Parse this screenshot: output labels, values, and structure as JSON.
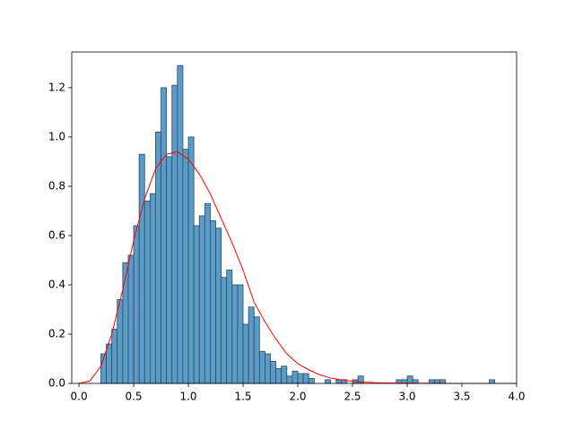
{
  "chart_data": {
    "type": "histogram",
    "bins": [
      0.2,
      0.25,
      0.3,
      0.35,
      0.4,
      0.45,
      0.5,
      0.55,
      0.6,
      0.65,
      0.7,
      0.75,
      0.8,
      0.85,
      0.9,
      0.95,
      1.0,
      1.05,
      1.1,
      1.15,
      1.2,
      1.25,
      1.3,
      1.35,
      1.4,
      1.45,
      1.5,
      1.55,
      1.6,
      1.65,
      1.7,
      1.75,
      1.8,
      1.85,
      1.9,
      1.95,
      2.0,
      2.05,
      2.1,
      2.15,
      2.2,
      2.25,
      2.3,
      2.35,
      2.4,
      2.45,
      2.5,
      2.55,
      2.6,
      2.65,
      2.7,
      2.75,
      2.8,
      2.85,
      2.9,
      2.95,
      3.0,
      3.05,
      3.1,
      3.15,
      3.2,
      3.25,
      3.3,
      3.35,
      3.4,
      3.45,
      3.5,
      3.55,
      3.6,
      3.65,
      3.7,
      3.75,
      3.8
    ],
    "values": [
      0.12,
      0.16,
      0.22,
      0.34,
      0.49,
      0.52,
      0.64,
      0.93,
      0.74,
      0.77,
      1.02,
      1.2,
      0.92,
      1.21,
      1.29,
      0.95,
      1.0,
      0.64,
      0.68,
      0.73,
      0.66,
      0.63,
      0.43,
      0.46,
      0.4,
      0.4,
      0.24,
      0.31,
      0.27,
      0.13,
      0.12,
      0.09,
      0.06,
      0.07,
      0.03,
      0.05,
      0.04,
      0.04,
      0.02,
      0,
      0,
      0.015,
      0,
      0.015,
      0.015,
      0,
      0.015,
      0.03,
      0,
      0,
      0,
      0,
      0,
      0,
      0.015,
      0.015,
      0.03,
      0.015,
      0,
      0,
      0.015,
      0.015,
      0.015,
      0,
      0,
      0,
      0,
      0,
      0,
      0,
      0,
      0.015
    ],
    "color": "#5b9bc8",
    "curve": {
      "color": "red",
      "x": [
        0,
        0.1,
        0.2,
        0.3,
        0.4,
        0.5,
        0.6,
        0.7,
        0.8,
        0.9,
        1.0,
        1.1,
        1.2,
        1.3,
        1.4,
        1.5,
        1.6,
        1.7,
        1.8,
        1.9,
        2.0,
        2.1,
        2.2,
        2.3,
        2.4,
        2.5,
        2.6,
        2.7,
        2.8,
        3.0,
        3.5,
        4.0
      ],
      "y": [
        0,
        0.01,
        0.07,
        0.2,
        0.38,
        0.58,
        0.75,
        0.87,
        0.93,
        0.94,
        0.91,
        0.85,
        0.77,
        0.67,
        0.57,
        0.46,
        0.33,
        0.25,
        0.18,
        0.12,
        0.08,
        0.055,
        0.035,
        0.022,
        0.014,
        0.009,
        0.005,
        0.003,
        0.002,
        0.001,
        0,
        0
      ]
    },
    "xlim": [
      -0.066,
      4.0
    ],
    "ylim": [
      0,
      1.345
    ],
    "xticks": [
      {
        "value": 0,
        "label": "0.0"
      },
      {
        "value": 0.5,
        "label": "0.5"
      },
      {
        "value": 1,
        "label": "1.0"
      },
      {
        "value": 1.5,
        "label": "1.5"
      },
      {
        "value": 2,
        "label": "2.0"
      },
      {
        "value": 2.5,
        "label": "2.5"
      },
      {
        "value": 3,
        "label": "3.0"
      },
      {
        "value": 3.5,
        "label": "3.5"
      },
      {
        "value": 4,
        "label": "4.0"
      }
    ],
    "yticks": [
      {
        "value": 0,
        "label": "0.0"
      },
      {
        "value": 0.2,
        "label": "0.2"
      },
      {
        "value": 0.4,
        "label": "0.4"
      },
      {
        "value": 0.6,
        "label": "0.6"
      },
      {
        "value": 0.8,
        "label": "0.8"
      },
      {
        "value": 1,
        "label": "1.0"
      },
      {
        "value": 1.2,
        "label": "1.2"
      }
    ]
  }
}
